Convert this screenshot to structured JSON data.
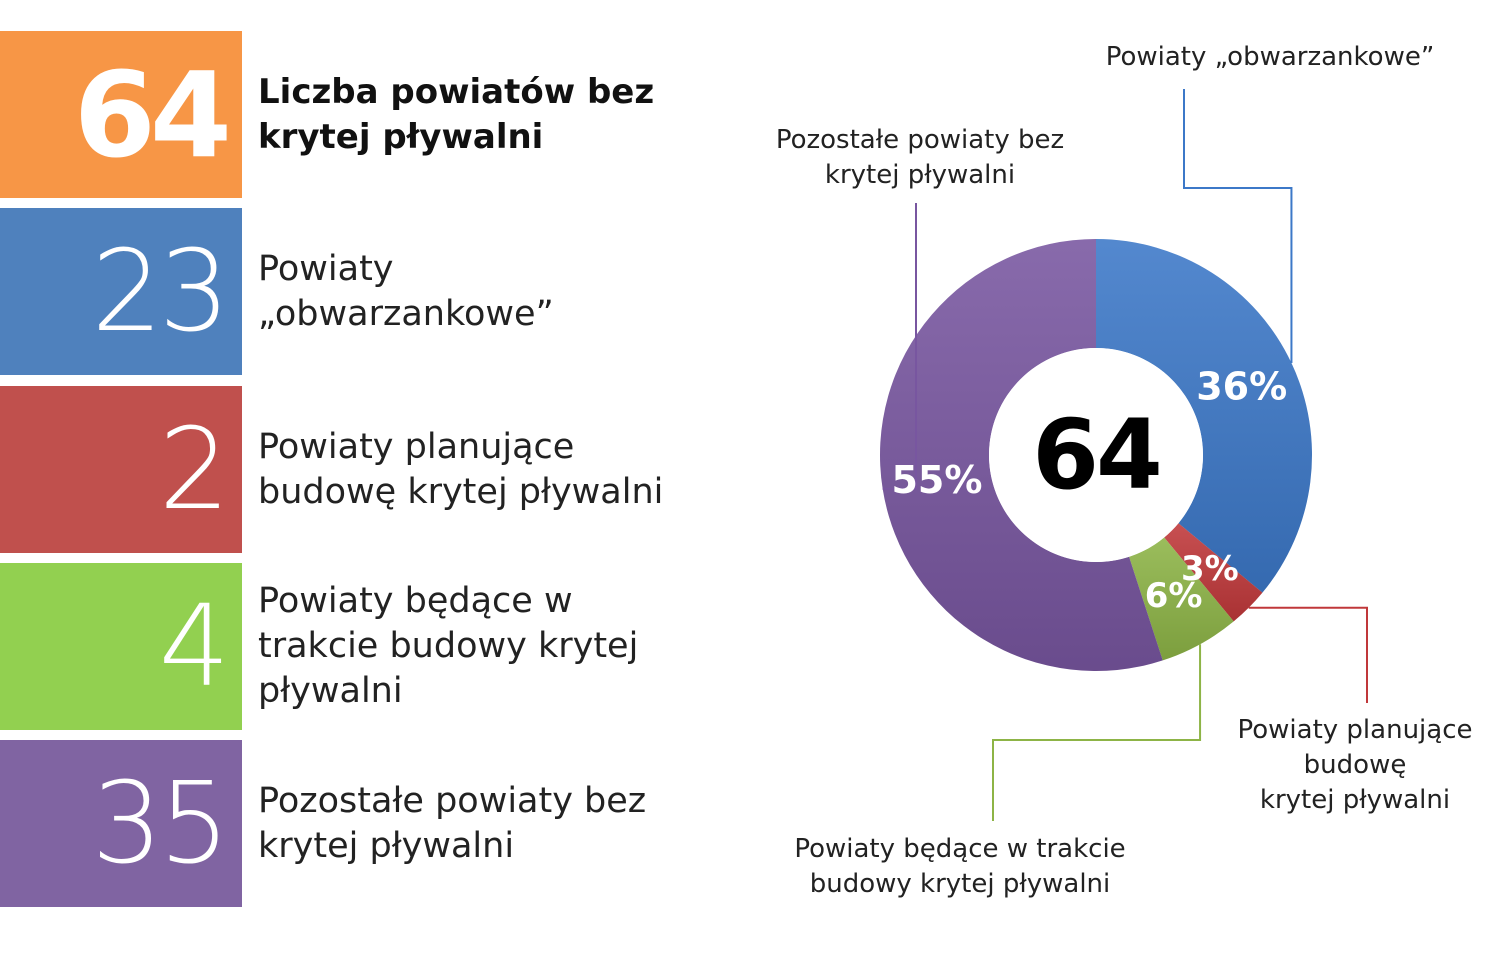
{
  "stats": [
    {
      "value": "64",
      "label": "Liczba powiatów bez\nkrytej pływalni",
      "color": "#F79646",
      "bold": true
    },
    {
      "value": "23",
      "label": "Powiaty\n„obwarzankowe”",
      "color": "#4F81BD",
      "bold": false
    },
    {
      "value": "2",
      "label": "Powiaty planujące\nbudowę krytej pływalni",
      "color": "#C0504D",
      "bold": false
    },
    {
      "value": "4",
      "label": "Powiaty będące w\ntrakcie budowy krytej\npływalni",
      "color": "#92D050",
      "bold": false
    },
    {
      "value": "35",
      "label": "Pozostałe powiaty bez\nkrytej pływalni",
      "color": "#8064A2",
      "bold": false
    }
  ],
  "chart_data": {
    "type": "pie",
    "variant": "doughnut",
    "center_label": "64",
    "series": [
      {
        "name": "Powiaty „obwarzankowe”",
        "value": 36,
        "label": "36%",
        "color": "#3C78C8",
        "legend_text": "Powiaty „obwarzankowe”"
      },
      {
        "name": "Powiaty planujące budowę krytej pływalni",
        "value": 3,
        "label": "3%",
        "color": "#C0383A",
        "legend_text": "Powiaty planujące\nbudowę\nkrytej pływalni"
      },
      {
        "name": "Powiaty będące w trakcie budowy krytej pływalni",
        "value": 6,
        "label": "6%",
        "color": "#8DB446",
        "legend_text": "Powiaty będące w trakcie\nbudowy krytej pływalni"
      },
      {
        "name": "Pozostałe powiaty bez krytej pływalni",
        "value": 55,
        "label": "55%",
        "color": "#7856A0",
        "legend_text": "Pozostałe powiaty bez\nkrytej pływalni"
      }
    ],
    "legend": "callouts"
  }
}
